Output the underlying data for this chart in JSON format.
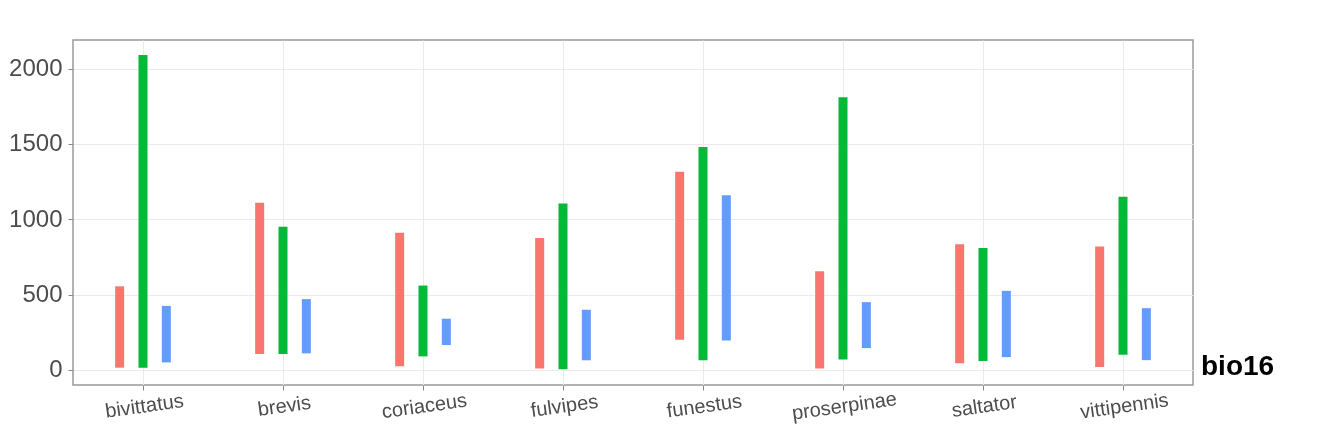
{
  "chart_data": {
    "type": "bar",
    "categories": [
      "bivittatus",
      "brevis",
      "coriaceus",
      "fulvipes",
      "funestus",
      "proserpinae",
      "saltator",
      "vittipennis"
    ],
    "series": [
      {
        "color": "#f8766d",
        "base": [
          15,
          105,
          25,
          10,
          200,
          10,
          45,
          20
        ],
        "values": [
          540,
          1005,
          885,
          865,
          1115,
          645,
          790,
          800
        ]
      },
      {
        "color": "#00ba38",
        "base": [
          15,
          105,
          90,
          5,
          65,
          70,
          60,
          100
        ],
        "values": [
          2075,
          845,
          470,
          1100,
          1415,
          1740,
          750,
          1050
        ]
      },
      {
        "color": "#619cff",
        "base": [
          50,
          110,
          165,
          65,
          195,
          145,
          85,
          65
        ],
        "values": [
          375,
          360,
          175,
          335,
          965,
          305,
          440,
          345
        ]
      }
    ],
    "ylim": [
      -100,
      2190
    ],
    "yticks": [
      0,
      500,
      1000,
      1500,
      2000
    ],
    "grid": true,
    "legend": false,
    "annotations": [
      "bio16"
    ]
  }
}
